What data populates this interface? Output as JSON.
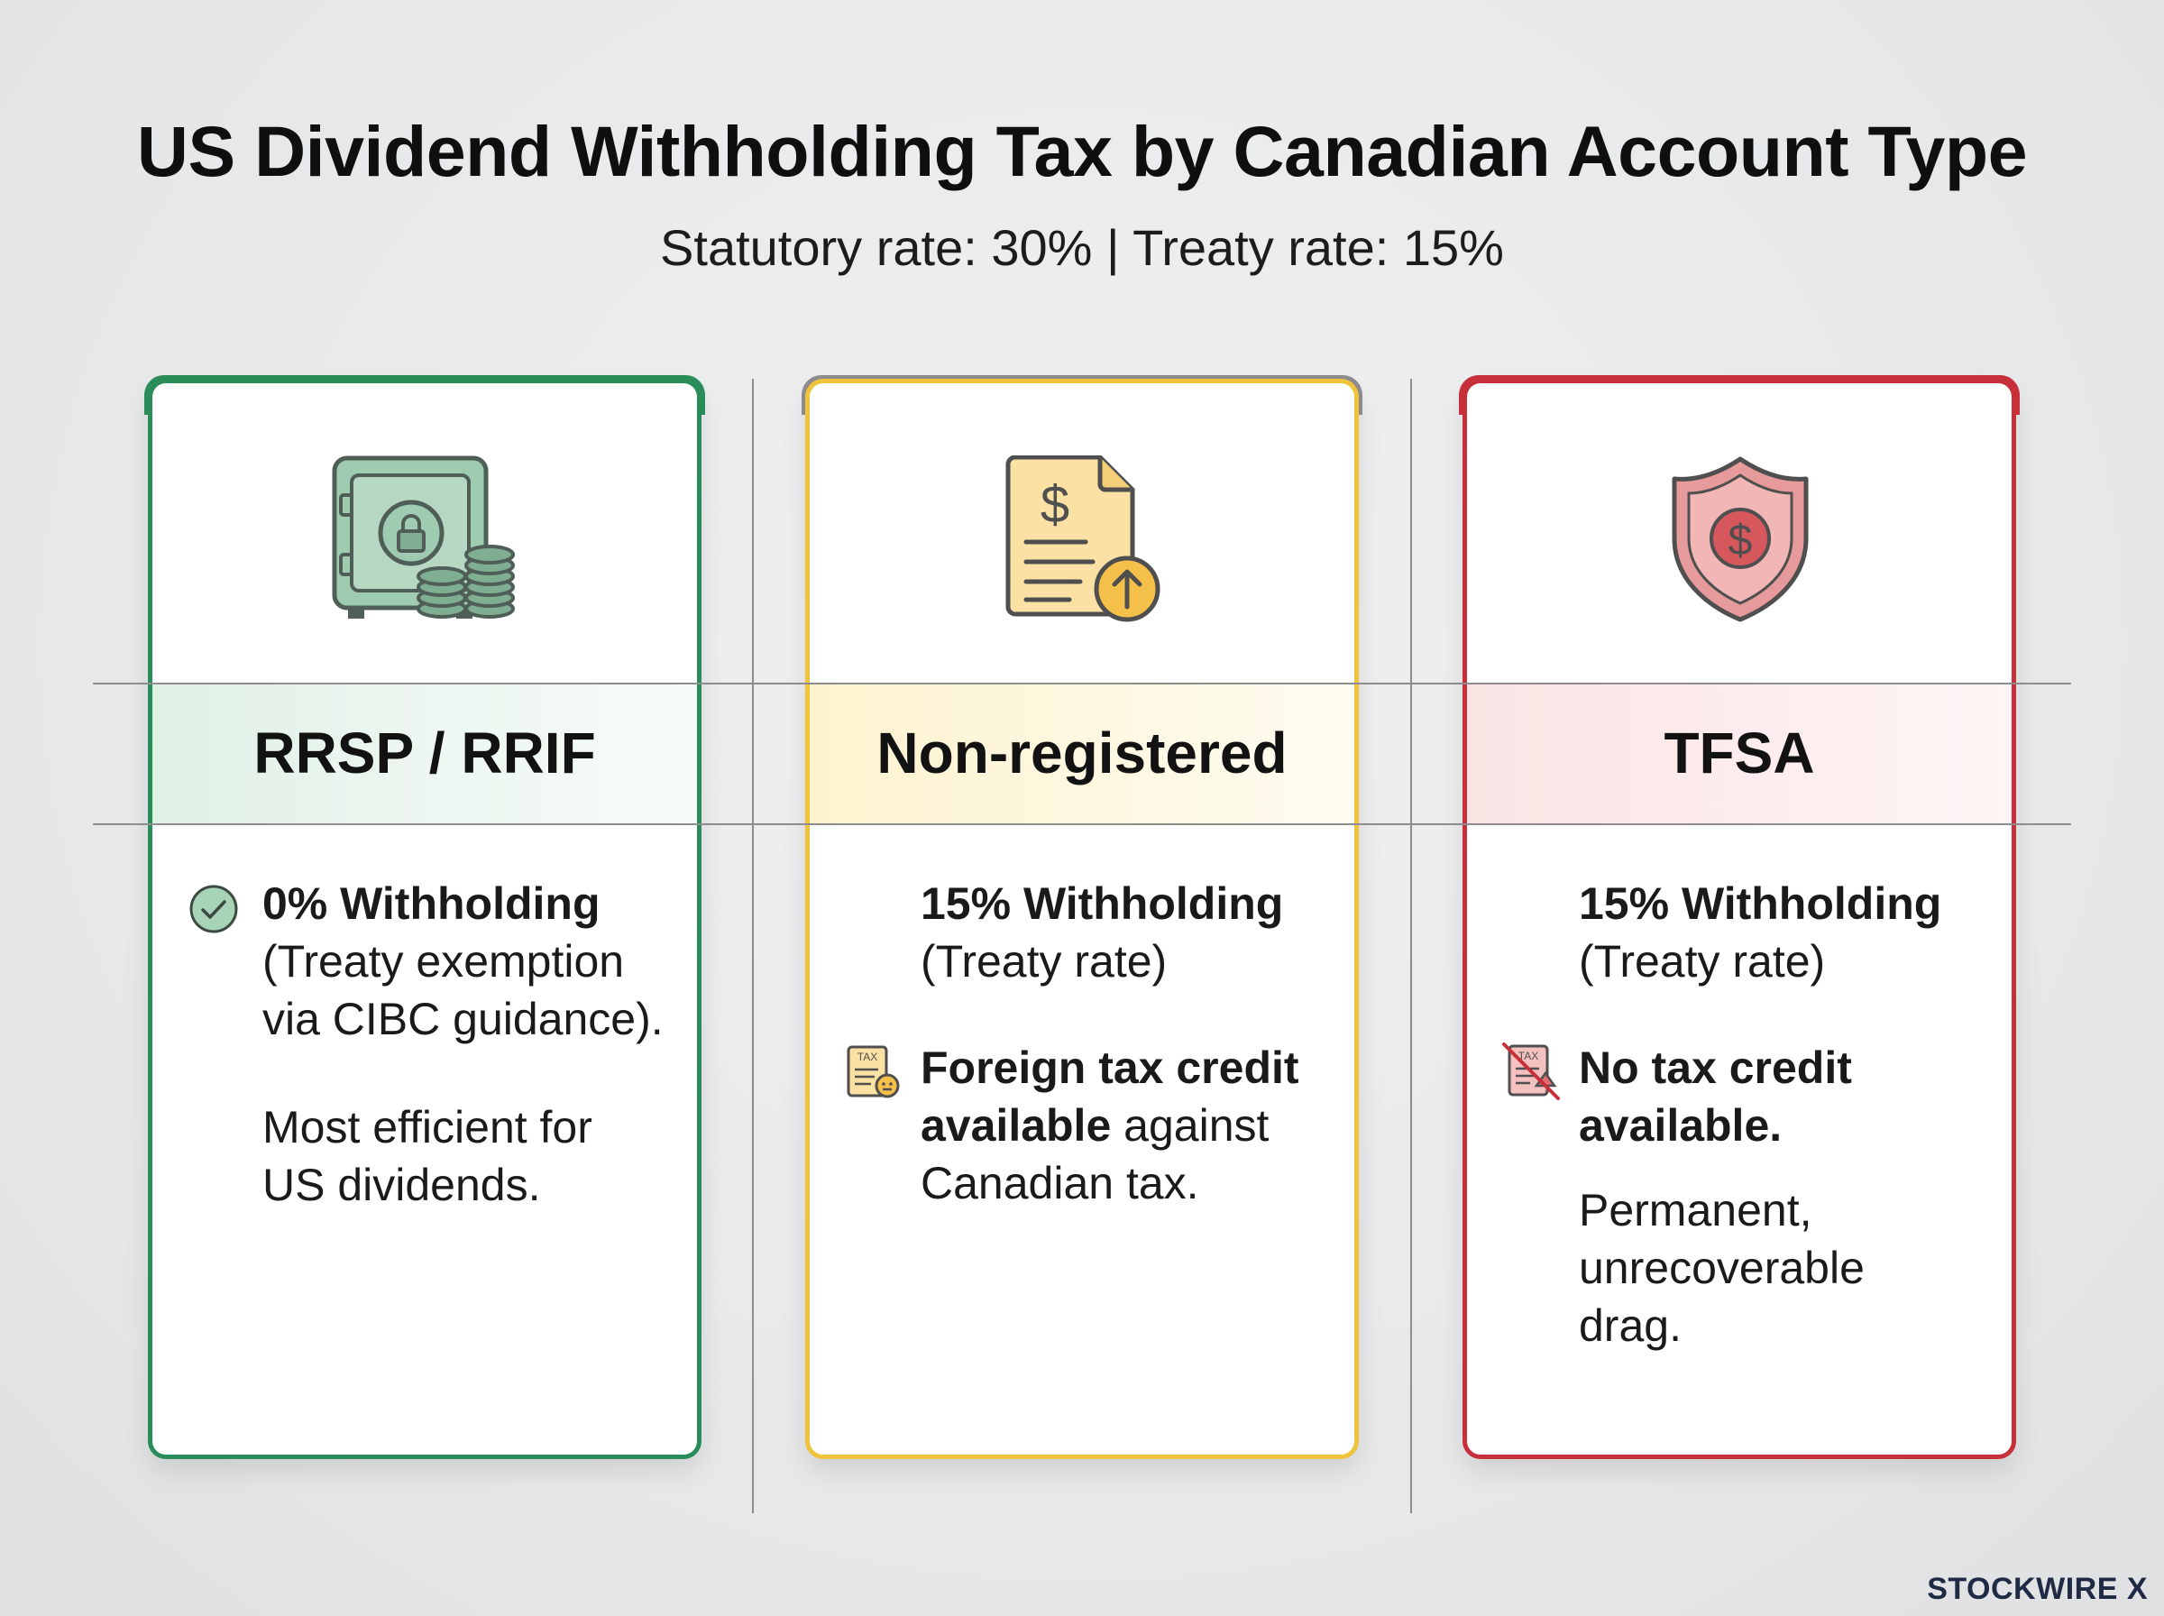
{
  "header": {
    "title": "US Dividend Withholding Tax by Canadian Account Type",
    "subtitle": "Statutory rate: 30% | Treaty rate: 15%"
  },
  "colors": {
    "green": "#2a8c58",
    "yellow": "#f0c43a",
    "gray_cap": "#8c8c8e",
    "red": "#c7303a"
  },
  "columns": [
    {
      "account": "RRSP / RRIF",
      "icon": "safe-with-coins-icon",
      "withholding": "0% Withholding",
      "detail": "(Treaty exemption via CIBC guidance).",
      "note": "Most efficient for US dividends.",
      "marker_icon": "check-circle-icon"
    },
    {
      "account": "Non-registered",
      "icon": "tax-document-upload-icon",
      "withholding": "15% Withholding",
      "detail": "(Treaty rate)",
      "credit_bold": "Foreign tax credit available",
      "credit_rest": " against Canadian tax.",
      "marker_icon": "tax-form-icon",
      "marker_text": "TAX"
    },
    {
      "account": "TFSA",
      "icon": "dollar-shield-icon",
      "withholding": "15% Withholding",
      "detail": "(Treaty rate)",
      "credit_bold": "No tax credit available.",
      "note": "Permanent, unrecoverable drag.",
      "marker_icon": "no-tax-form-icon",
      "marker_text": "TAX"
    }
  ],
  "brand": "STOCKWIRE X"
}
